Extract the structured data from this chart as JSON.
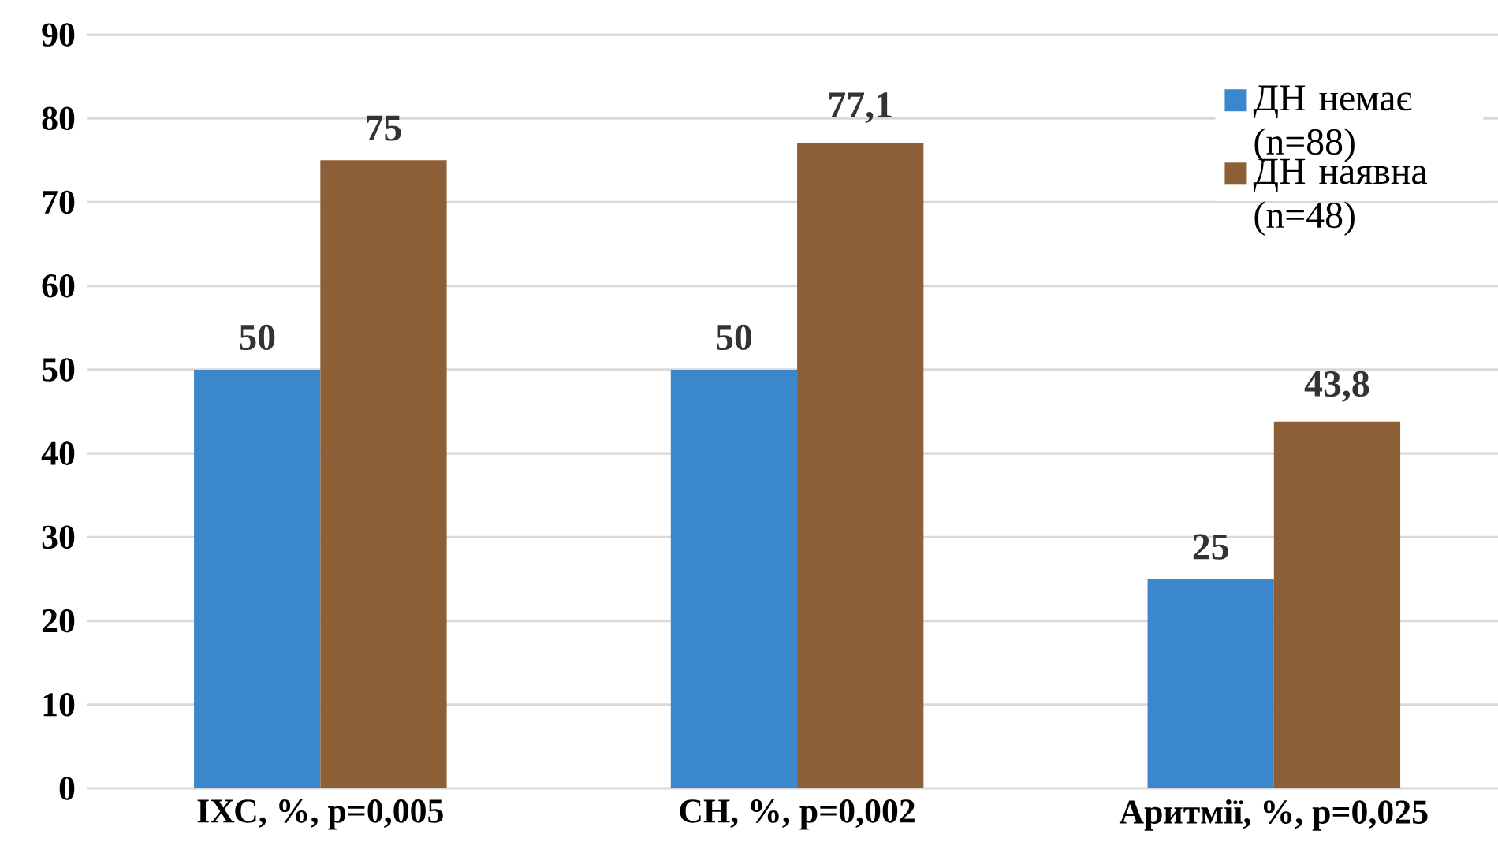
{
  "chart_data": {
    "type": "bar",
    "categories": [
      "ІХС, %, p=0,005",
      "СН, %, p=0,002",
      "Аритмії, %, p=0,025"
    ],
    "series": [
      {
        "name": "ДН немає (n=88)",
        "color": "#3a87cc",
        "values": [
          50,
          50,
          25
        ],
        "value_labels": [
          "50",
          "50",
          "25"
        ]
      },
      {
        "name": "ДН наявна (n=48)",
        "color": "#8c5f36",
        "values": [
          75,
          77.1,
          43.8
        ],
        "value_labels": [
          "75",
          "77,1",
          "43,8"
        ]
      }
    ],
    "ylim": [
      0,
      90
    ],
    "yticks": [
      0,
      10,
      20,
      30,
      40,
      50,
      60,
      70,
      80,
      90
    ],
    "grid": "y",
    "legend": "top right"
  }
}
